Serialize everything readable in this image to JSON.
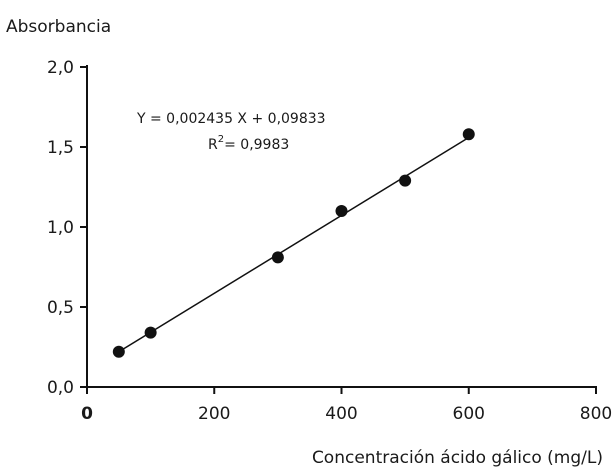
{
  "chart_data": {
    "type": "scatter",
    "title": "",
    "xlabel": "Concentración ácido gálico (mg/L)",
    "ylabel": "Absorbancia",
    "xlim": [
      0,
      800
    ],
    "ylim": [
      0.0,
      2.0
    ],
    "x_ticks": [
      "0",
      "200",
      "400",
      "600",
      "800"
    ],
    "y_ticks": [
      "0,0",
      "0,5",
      "1,0",
      "1,5",
      "2,0"
    ],
    "grid": false,
    "legend": "none",
    "series": [
      {
        "x": [
          50,
          100,
          300,
          400,
          500,
          600
        ],
        "y": [
          0.22,
          0.34,
          0.81,
          1.1,
          1.29,
          1.58
        ],
        "marker": "circle",
        "color": "#111111"
      }
    ],
    "fit_line": {
      "x_range": [
        50,
        600
      ],
      "slope": 0.002435,
      "intercept": 0.09833,
      "color": "#111111"
    },
    "annotations": {
      "equation": "Y = 0,002435 X + 0,09833",
      "r2_base": "R",
      "r2_sup": "2",
      "r2_rest": "= 0,9983"
    }
  }
}
